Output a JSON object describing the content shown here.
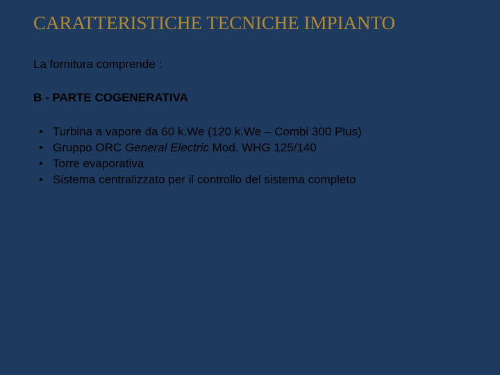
{
  "colors": {
    "background": "#1f3a5f",
    "title": "#b38b2e",
    "body_text": "#000000"
  },
  "typography": {
    "title_font": "Times New Roman",
    "title_size_pt": 27,
    "body_font": "Arial",
    "body_size_pt": 17
  },
  "title": "CARATTERISTICHE TECNICHE IMPIANTO",
  "intro": "La fornitura comprende :",
  "section_head": "B  -  PARTE  COGENERATIVA",
  "bullets": [
    {
      "pre": "Turbina a vapore da 60 k.We  (120 k.We – Combi 300 Plus)",
      "italic": "",
      "post": ""
    },
    {
      "pre": "Gruppo ORC ",
      "italic": "General Electric",
      "post": "  Mod. WHG 125/140"
    },
    {
      "pre": "Torre evaporativa",
      "italic": "",
      "post": ""
    },
    {
      "pre": "Sistema centralizzato per il controllo del sistema completo",
      "italic": "",
      "post": ""
    }
  ]
}
